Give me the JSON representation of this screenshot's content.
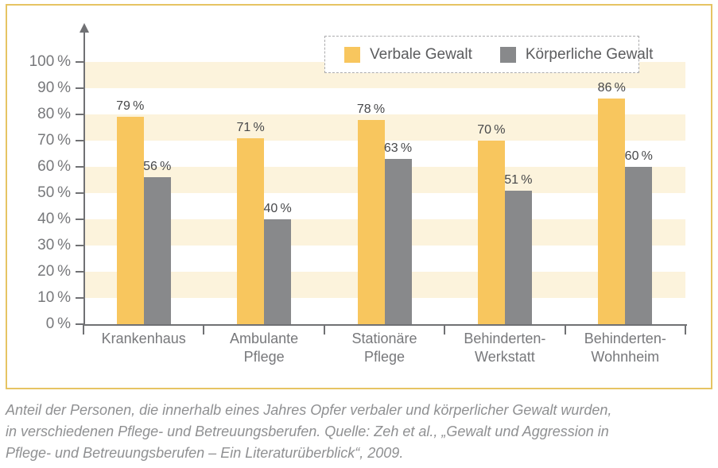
{
  "chart_data": {
    "type": "bar",
    "title": "",
    "categories": [
      "Krankenhaus",
      "Ambulante\nPflege",
      "Stationäre\nPflege",
      "Behinderten-\nWerkstatt",
      "Behinderten-\nWohnheim"
    ],
    "series": [
      {
        "name": "Verbale Gewalt",
        "color": "#F8C65E",
        "values": [
          79,
          71,
          78,
          70,
          86
        ]
      },
      {
        "name": "Körperliche Gewalt",
        "color": "#88898B",
        "values": [
          56,
          40,
          63,
          51,
          60
        ]
      }
    ],
    "value_label_suffix": " %",
    "y_axis": {
      "min": 0,
      "max": 100,
      "step": 10,
      "tick_labels": [
        "0 %",
        "10 %",
        "20 %",
        "30 %",
        "40 %",
        "50 %",
        "60 %",
        "70 %",
        "80 %",
        "90 %",
        "100 %"
      ]
    },
    "ylim": [
      0,
      100
    ],
    "grid": "horizontal-stripe-bands",
    "background_stripes": {
      "color": "#FCF3DC",
      "bands": [
        [
          10,
          20
        ],
        [
          30,
          40
        ],
        [
          50,
          60
        ],
        [
          70,
          80
        ],
        [
          90,
          100
        ]
      ]
    },
    "legend_position": "top-right"
  },
  "caption": {
    "lines": [
      "Anteil der Personen, die innerhalb eines Jahres Opfer verbaler und körperlicher Gewalt wurden,",
      "in verschiedenen Pflege- und Betreuungsberufen. Quelle: Zeh et al., „Gewalt und Aggression in",
      "Pflege- und Betreuungsberufen – Ein Literaturüberblick“, 2009."
    ]
  },
  "colors": {
    "frame_border": "#E6C463",
    "stripe": "#FCF3DC",
    "axis": "#707174",
    "y_tick_label": "#77787B",
    "category_label": "#77787B",
    "value_label": "#47484A",
    "legend_text": "#5B5C5E",
    "legend_border": "#ABABAD",
    "caption_text": "#8F9092",
    "bar_yellow": "#F8C65E",
    "bar_gray": "#88898B"
  }
}
